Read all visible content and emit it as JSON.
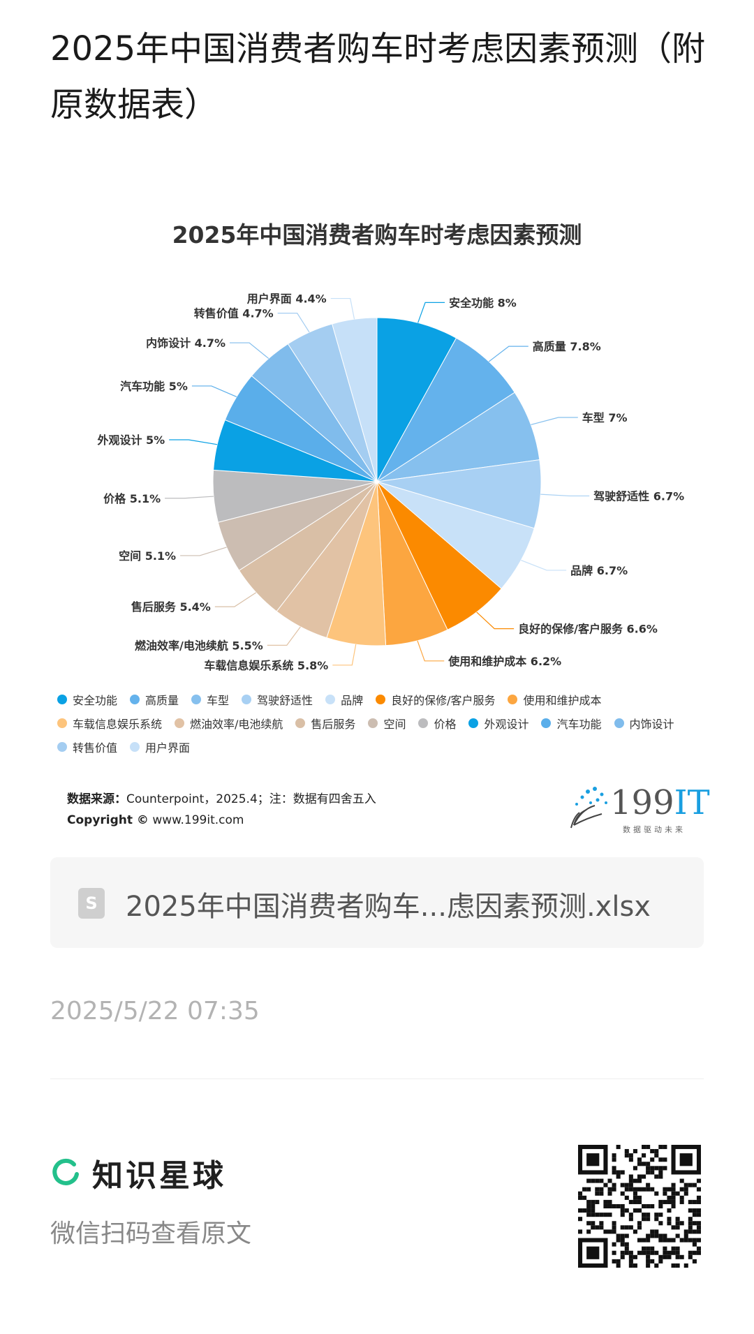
{
  "page": {
    "title": "2025年中国消费者购车时考虑因素预测（附原数据表）",
    "timestamp": "2025/5/22 07:35"
  },
  "chart_data": {
    "type": "pie",
    "title": "2025年中国消费者购车时考虑因素预测",
    "unit": "%",
    "slices": [
      {
        "name": "安全功能",
        "value": 8,
        "label": "安全功能 8%",
        "color": "#0aa1e4"
      },
      {
        "name": "高质量",
        "value": 7.8,
        "label": "高质量 7.8%",
        "color": "#64b2ec"
      },
      {
        "name": "车型",
        "value": 7,
        "label": "车型 7%",
        "color": "#86c0ee"
      },
      {
        "name": "驾驶舒适性",
        "value": 6.7,
        "label": "驾驶舒适性 6.7%",
        "color": "#a8d0f3"
      },
      {
        "name": "品牌",
        "value": 6.7,
        "label": "品牌 6.7%",
        "color": "#c8e1f8"
      },
      {
        "name": "良好的保修/客户服务",
        "value": 6.6,
        "label": "良好的保修/客户服务 6.6%",
        "color": "#fb8a00"
      },
      {
        "name": "使用和维护成本",
        "value": 6.2,
        "label": "使用和维护成本 6.2%",
        "color": "#fca640"
      },
      {
        "name": "车载信息娱乐系统",
        "value": 5.8,
        "label": "车载信息娱乐系统 5.8%",
        "color": "#fdc47c"
      },
      {
        "name": "燃油效率/电池续航",
        "value": 5.5,
        "label": "燃油效率/电池续航 5.5%",
        "color": "#e1c2a5"
      },
      {
        "name": "售后服务",
        "value": 5.4,
        "label": "售后服务 5.4%",
        "color": "#d9bfa6"
      },
      {
        "name": "空间",
        "value": 5.1,
        "label": "空间 5.1%",
        "color": "#ccbdb1"
      },
      {
        "name": "价格",
        "value": 5.1,
        "label": "价格 5.1%",
        "color": "#bcbcbe"
      },
      {
        "name": "外观设计",
        "value": 5,
        "label": "外观设计 5%",
        "color": "#0aa1e4"
      },
      {
        "name": "汽车功能",
        "value": 5,
        "label": "汽车功能 5%",
        "color": "#5aaeea"
      },
      {
        "name": "内饰设计",
        "value": 4.7,
        "label": "内饰设计 4.7%",
        "color": "#80bcec"
      },
      {
        "name": "转售价值",
        "value": 4.7,
        "label": "转售价值 4.7%",
        "color": "#a4cdf1"
      },
      {
        "name": "用户界面",
        "value": 4.4,
        "label": "用户界面 4.4%",
        "color": "#c6e0f8"
      }
    ]
  },
  "source": {
    "label": "数据来源：",
    "text": "Counterpoint，2025.4；注：数据有四舍五入",
    "copyright_label": "Copyright ©",
    "copyright_text": "www.199it.com"
  },
  "brand": {
    "number": "199",
    "suffix": "IT",
    "tagline": "数据驱动未来"
  },
  "file": {
    "icon_letter": "S",
    "name": "2025年中国消费者购车...虑因素预测.xlsx",
    "icon": "spreadsheet-file-icon"
  },
  "footer": {
    "planet_name": "知识星球",
    "scan_text": "微信扫码查看原文",
    "accent": "#23c08b"
  }
}
